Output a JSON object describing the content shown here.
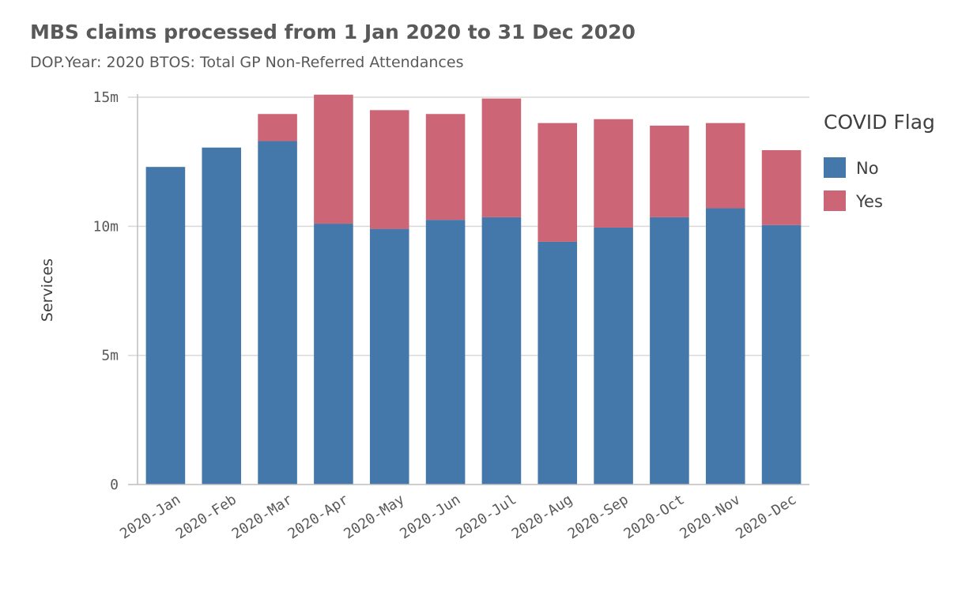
{
  "title": "MBS claims processed from 1 Jan 2020 to 31 Dec 2020",
  "subtitle": "DOP.Year: 2020 BTOS: Total GP Non-Referred Attendances",
  "colors": {
    "No": "#4477aa",
    "Yes": "#cc6677",
    "grid": "#d9d9d9",
    "axis": "#bfbfbf"
  },
  "chart_data": {
    "type": "bar",
    "stacked": true,
    "categories": [
      "2020-Jan",
      "2020-Feb",
      "2020-Mar",
      "2020-Apr",
      "2020-May",
      "2020-Jun",
      "2020-Jul",
      "2020-Aug",
      "2020-Sep",
      "2020-Oct",
      "2020-Nov",
      "2020-Dec"
    ],
    "series": [
      {
        "name": "No",
        "color": "#4477aa",
        "values": [
          12.3,
          13.05,
          13.3,
          10.1,
          9.9,
          10.25,
          10.35,
          9.4,
          9.95,
          10.35,
          10.7,
          10.05
        ]
      },
      {
        "name": "Yes",
        "color": "#cc6677",
        "values": [
          0,
          0,
          1.05,
          5.0,
          4.6,
          4.1,
          4.6,
          4.6,
          4.2,
          3.55,
          3.3,
          2.9
        ]
      }
    ],
    "title": "MBS claims processed from 1 Jan 2020 to 31 Dec 2020",
    "subtitle": "DOP.Year: 2020 BTOS: Total GP Non-Referred Attendances",
    "xlabel": "",
    "ylabel": "Services",
    "ylim": [
      0,
      15
    ],
    "yticks": [
      {
        "value": 0,
        "label": "0"
      },
      {
        "value": 5,
        "label": "5m"
      },
      {
        "value": 10,
        "label": "10m"
      },
      {
        "value": 15,
        "label": "15m"
      }
    ],
    "grid": true,
    "legend": {
      "title": "COVID Flag",
      "position": "right",
      "entries": [
        "No",
        "Yes"
      ]
    }
  }
}
